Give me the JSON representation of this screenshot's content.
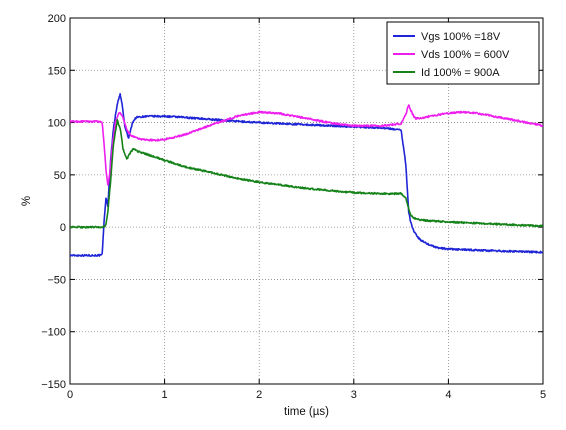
{
  "chart_data": {
    "type": "line",
    "title": "",
    "xlabel": "time (µs)",
    "ylabel": "%",
    "xlim": [
      0,
      5
    ],
    "ylim": [
      -150,
      200
    ],
    "x_ticks": [
      0,
      1,
      2,
      3,
      4,
      5
    ],
    "x_tick_labels": [
      "0",
      "1",
      "2",
      "3",
      "4",
      "5"
    ],
    "y_ticks": [
      -150,
      -100,
      -50,
      0,
      50,
      100,
      150,
      200
    ],
    "y_tick_labels": [
      "−150",
      "−100",
      "−50",
      "0",
      "50",
      "100",
      "150",
      "200"
    ],
    "grid": true,
    "grid_style": "dotted",
    "legend_position": "top-right",
    "series": [
      {
        "name": "Vgs 100% =18V",
        "color": "#1f25d6",
        "x": [
          0,
          0.33,
          0.34,
          0.36,
          0.38,
          0.4,
          0.43,
          0.46,
          0.5,
          0.53,
          0.55,
          0.58,
          0.62,
          0.66,
          0.7,
          0.8,
          1.0,
          1.2,
          1.5,
          1.8,
          2.0,
          2.5,
          3.0,
          3.3,
          3.5,
          3.55,
          3.58,
          3.6,
          3.62,
          3.64,
          3.7,
          3.8,
          3.9,
          4.0,
          4.3,
          4.6,
          5.0
        ],
        "values": [
          -27,
          -27,
          -26,
          5,
          28,
          20,
          65,
          95,
          118,
          127,
          118,
          96,
          85,
          100,
          105,
          106,
          106,
          105,
          103,
          101,
          100,
          98,
          96,
          95,
          93,
          60,
          15,
          5,
          0,
          -5,
          -12,
          -17,
          -20,
          -21,
          -22,
          -23,
          -24
        ]
      },
      {
        "name": "Vds 100% = 600V",
        "color": "#ee1fee",
        "x": [
          0,
          0.3,
          0.34,
          0.36,
          0.38,
          0.4,
          0.42,
          0.45,
          0.48,
          0.52,
          0.56,
          0.6,
          0.64,
          0.68,
          0.75,
          0.9,
          1.0,
          1.2,
          1.5,
          1.8,
          2.0,
          2.2,
          2.5,
          2.8,
          3.0,
          3.3,
          3.5,
          3.55,
          3.58,
          3.62,
          3.65,
          3.7,
          3.8,
          4.0,
          4.15,
          4.3,
          4.6,
          5.0
        ],
        "values": [
          101,
          101,
          100,
          80,
          55,
          40,
          50,
          80,
          100,
          110,
          105,
          93,
          88,
          86,
          84,
          83,
          84,
          88,
          98,
          107,
          110,
          109,
          104,
          99,
          97,
          97,
          99,
          108,
          117,
          108,
          104,
          104,
          106,
          109,
          110,
          109,
          104,
          97
        ]
      },
      {
        "name": "Id 100% = 900A",
        "color": "#158219",
        "x": [
          0,
          0.35,
          0.38,
          0.4,
          0.43,
          0.46,
          0.5,
          0.53,
          0.56,
          0.6,
          0.63,
          0.67,
          0.7,
          0.8,
          1.0,
          1.2,
          1.5,
          1.8,
          2.0,
          2.5,
          3.0,
          3.3,
          3.5,
          3.55,
          3.58,
          3.6,
          3.63,
          3.66,
          3.7,
          3.8,
          4.0,
          4.5,
          5.0
        ],
        "values": [
          0,
          0,
          2,
          15,
          45,
          80,
          102,
          95,
          75,
          65,
          70,
          75,
          73,
          70,
          64,
          58,
          52,
          46,
          43,
          37,
          33,
          32,
          32,
          28,
          18,
          12,
          9,
          8,
          7,
          6,
          5,
          3,
          1
        ]
      }
    ]
  }
}
